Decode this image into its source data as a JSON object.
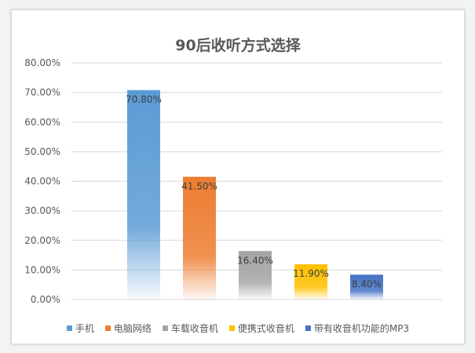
{
  "chart_data": {
    "type": "bar",
    "title": "90后收听方式选择",
    "categories": [
      "手机",
      "电脑网络",
      "车载收音机",
      "便携式收音机",
      "带有收音机功能的MP3"
    ],
    "values": [
      70.8,
      41.5,
      16.4,
      11.9,
      8.4
    ],
    "data_labels": [
      "70.80%",
      "41.50%",
      "16.40%",
      "11.90%",
      "8.40%"
    ],
    "colors": [
      "#5b9bd5",
      "#ed7d31",
      "#a5a5a5",
      "#ffc000",
      "#4472c4"
    ],
    "ylim": [
      0,
      80
    ],
    "yticks": [
      0,
      10,
      20,
      30,
      40,
      50,
      60,
      70,
      80
    ],
    "ytick_labels": [
      "0.00%",
      "10.00%",
      "20.00%",
      "30.00%",
      "40.00%",
      "50.00%",
      "60.00%",
      "70.00%",
      "80.00%"
    ],
    "grid": true,
    "legend_position": "bottom"
  }
}
